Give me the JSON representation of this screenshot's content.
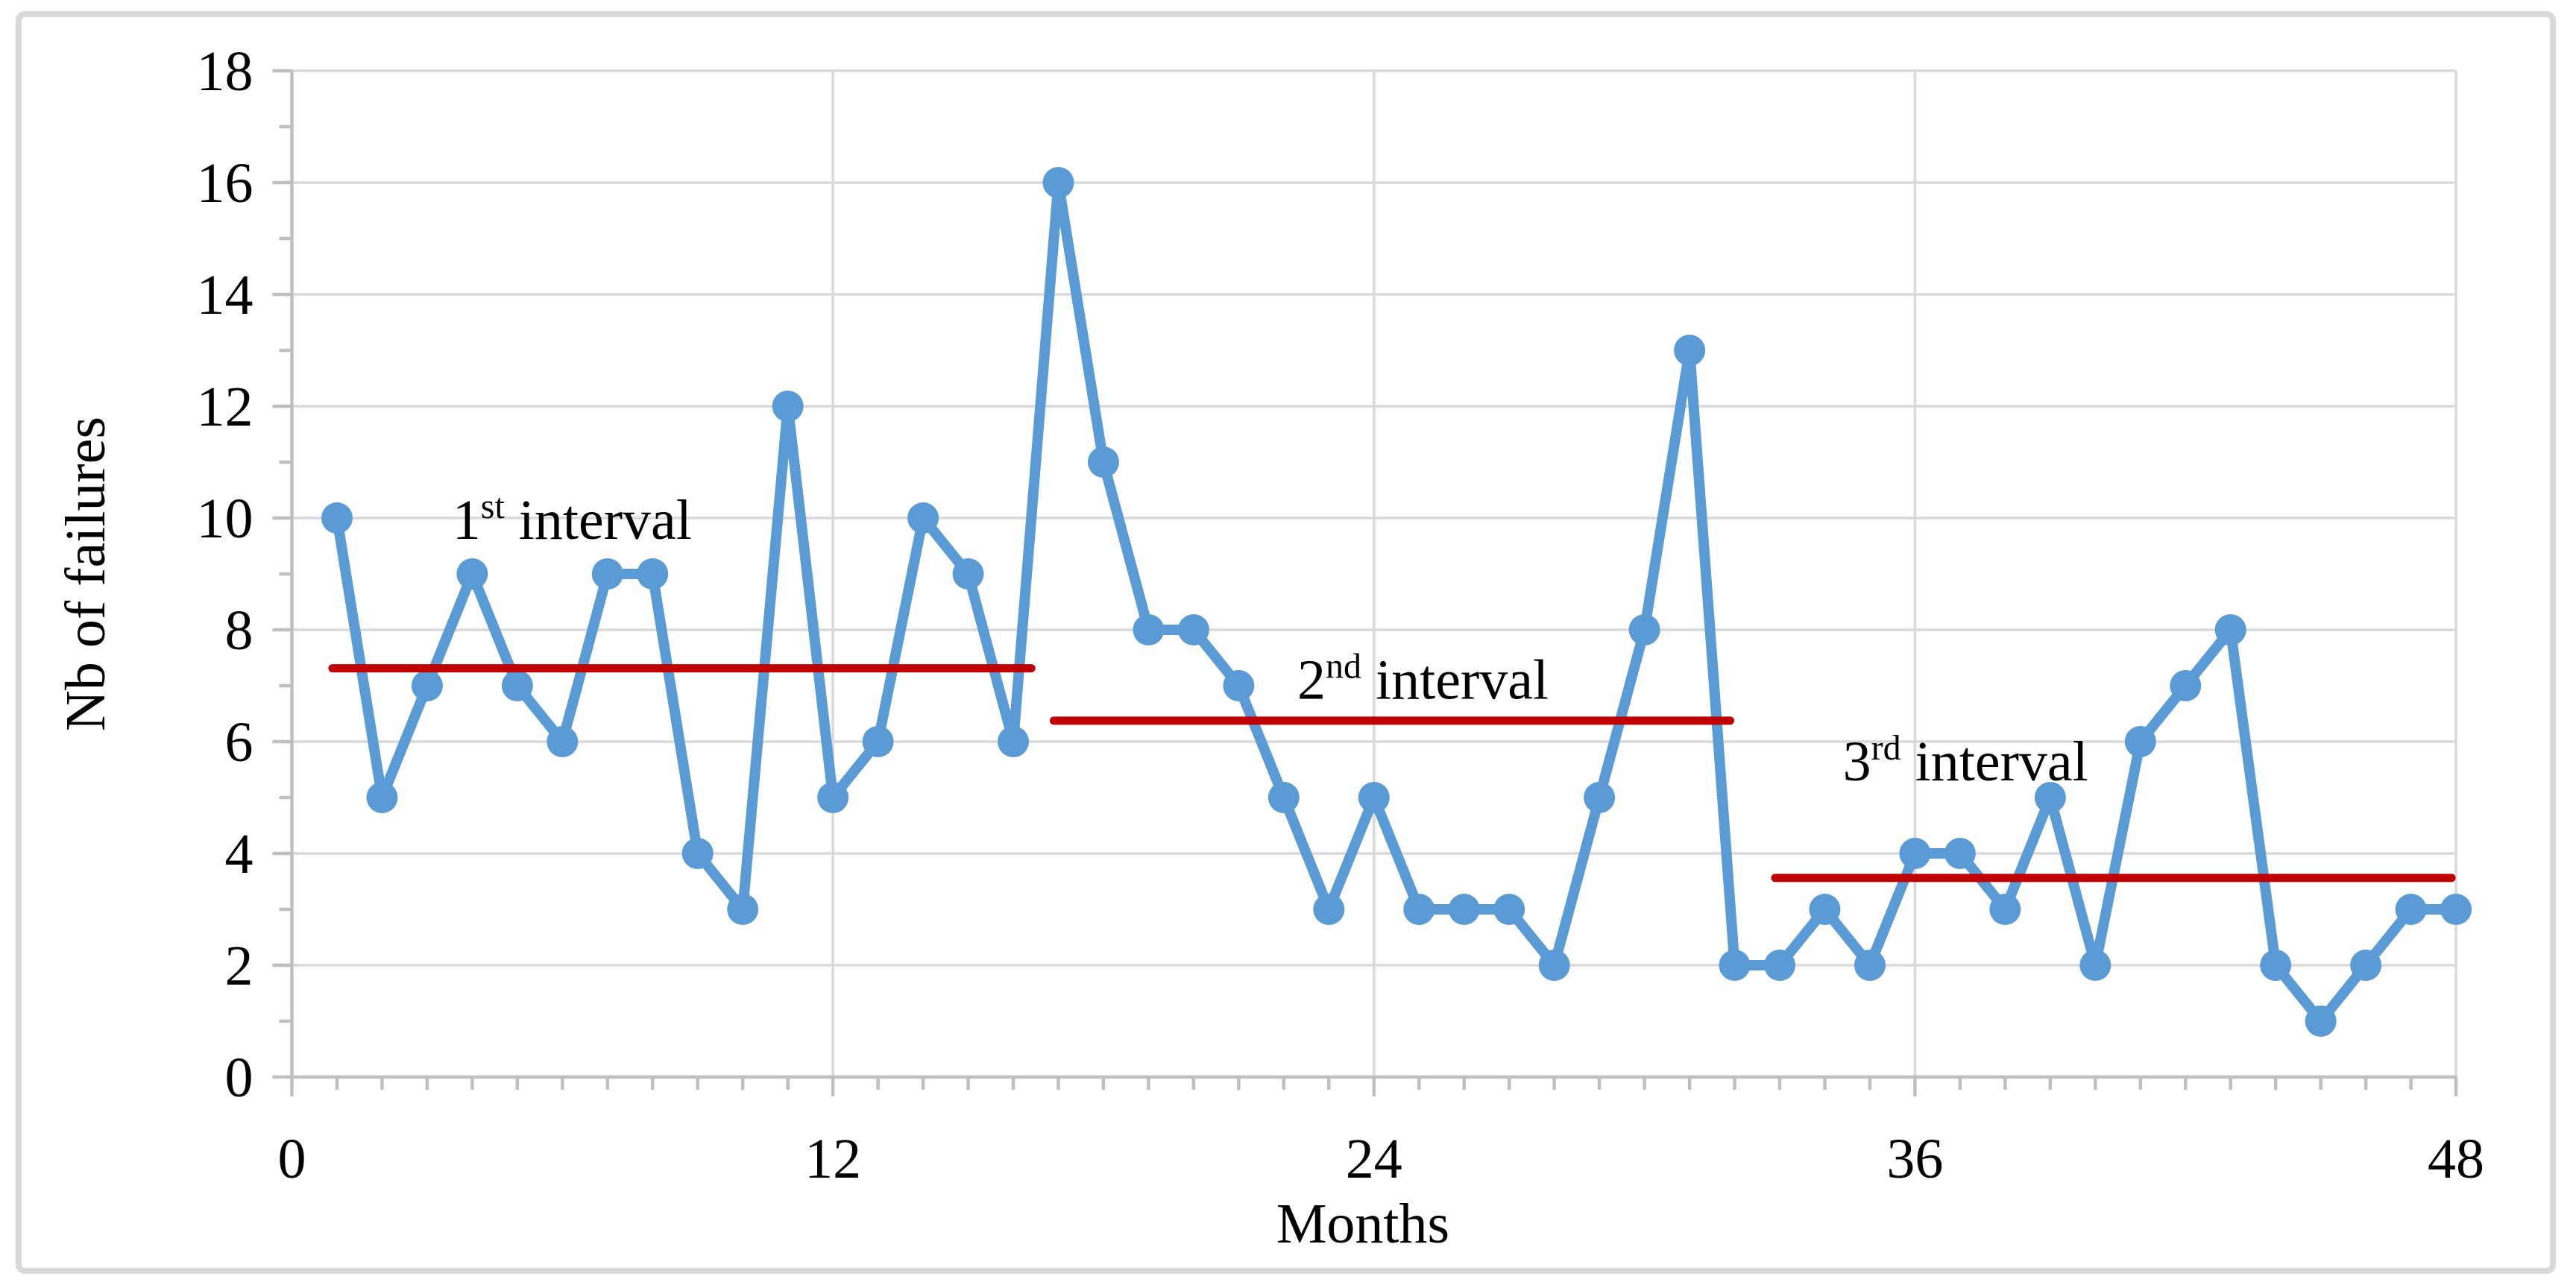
{
  "chart_data": {
    "type": "line",
    "title": "",
    "xlabel": "Months",
    "ylabel": "Nb of failures",
    "xlim": [
      0,
      48
    ],
    "ylim": [
      0,
      18
    ],
    "x_major_ticks": [
      0,
      12,
      24,
      36,
      48
    ],
    "x_minor_tick_step": 1,
    "y_major_ticks": [
      0,
      2,
      4,
      6,
      8,
      10,
      12,
      14,
      16,
      18
    ],
    "y_minor_tick_step": 1,
    "grid": "major",
    "legend": "none",
    "x": [
      1,
      2,
      3,
      4,
      5,
      6,
      7,
      8,
      9,
      10,
      11,
      12,
      13,
      14,
      15,
      16,
      17,
      18,
      19,
      20,
      21,
      22,
      23,
      24,
      25,
      26,
      27,
      28,
      29,
      30,
      31,
      32,
      33,
      34,
      35,
      36,
      37,
      38,
      39,
      40,
      41,
      42,
      43,
      44,
      45,
      46,
      47,
      48
    ],
    "series": [
      {
        "name": "Nb of failures per month",
        "values": [
          10,
          5,
          7,
          9,
          7,
          6,
          9,
          9,
          4,
          3,
          12,
          5,
          6,
          10,
          9,
          6,
          16,
          11,
          8,
          8,
          7,
          5,
          3,
          5,
          3,
          3,
          3,
          2,
          5,
          8,
          13,
          2,
          2,
          3,
          2,
          4,
          4,
          3,
          5,
          2,
          6,
          7,
          8,
          2,
          1,
          2,
          3,
          3
        ]
      }
    ],
    "mean_lines": [
      {
        "name": "1st-interval-mean",
        "value": 7.3125,
        "x_start": 0.9,
        "x_end": 16.4
      },
      {
        "name": "2nd-interval-mean",
        "value": 6.375,
        "x_start": 16.9,
        "x_end": 31.9
      },
      {
        "name": "3rd-interval-mean",
        "value": 3.5625,
        "x_start": 32.9,
        "x_end": 47.9
      }
    ],
    "annotations": [
      {
        "text_main": "1",
        "superscript": "st",
        "text_rest": " interval",
        "x_month": 3.56,
        "y_value": 9.63
      },
      {
        "text_main": "2",
        "superscript": "nd",
        "text_rest": " interval",
        "x_month": 22.3,
        "y_value": 6.77
      },
      {
        "text_main": "3",
        "superscript": "rd",
        "text_rest": " interval",
        "x_month": 34.4,
        "y_value": 5.31
      }
    ]
  },
  "colors": {
    "series_blue": "#5B9BD5",
    "mean_red": "#C00000",
    "gridline": "#D9D9D9",
    "axis": "#BFBFBF",
    "border": "#D9D9D9",
    "text": "#000000",
    "background": "#FFFFFF"
  }
}
